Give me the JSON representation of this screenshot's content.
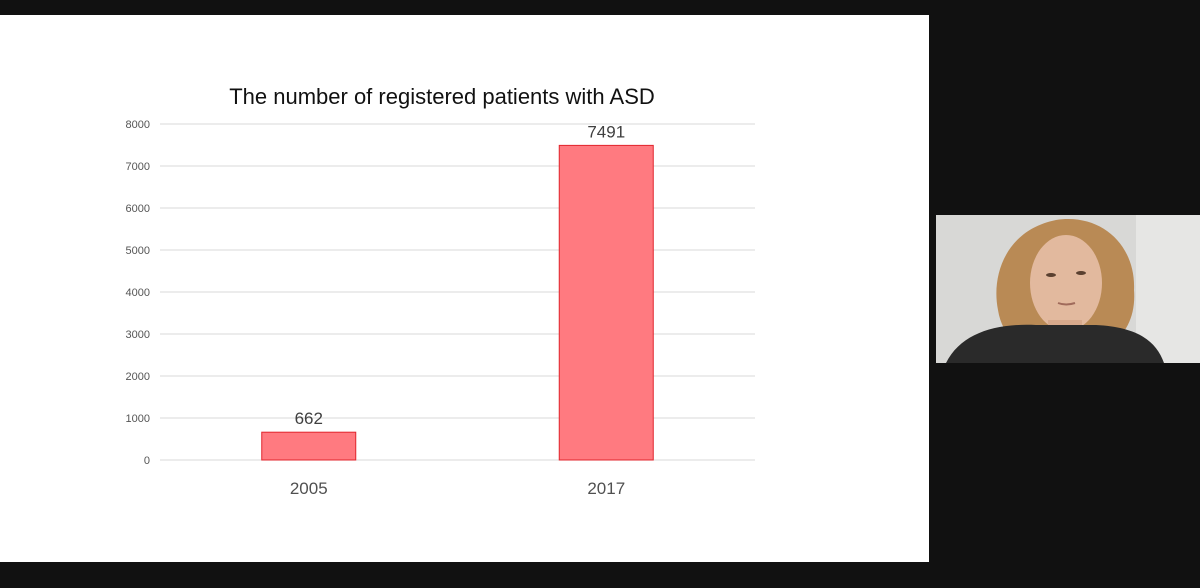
{
  "presentation": {
    "slide": {
      "chart_data": {
        "type": "bar",
        "title": "The number of registered patients with ASD",
        "categories": [
          "2005",
          "2017"
        ],
        "values": [
          662,
          7491
        ],
        "data_labels": [
          "662",
          "7491"
        ],
        "y_ticks": [
          "0",
          "1000",
          "2000",
          "3000",
          "4000",
          "5000",
          "6000",
          "7000",
          "8000"
        ],
        "ylim": [
          0,
          8000
        ],
        "xlabel": "",
        "ylabel": "",
        "grid": true,
        "legend": "none",
        "colors": {
          "bar_fill": "#ff7a80",
          "bar_stroke": "#e0242c",
          "grid": "#d9d9d9"
        }
      }
    },
    "webcam": {
      "label": ""
    }
  }
}
